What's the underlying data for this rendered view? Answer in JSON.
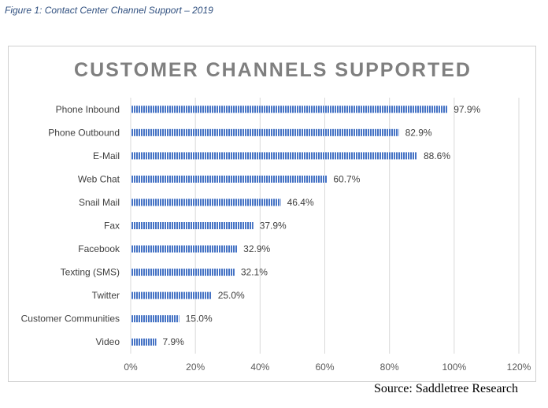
{
  "caption": "Figure 1: Contact Center Channel Support – 2019",
  "source": "Source: Saddletree Research",
  "chart_data": {
    "type": "bar",
    "orientation": "horizontal",
    "title": "CUSTOMER CHANNELS SUPPORTED",
    "categories": [
      "Phone Inbound",
      "Phone Outbound",
      "E-Mail",
      "Web Chat",
      "Snail Mail",
      "Fax",
      "Facebook",
      "Texting (SMS)",
      "Twitter",
      "Customer Communities",
      "Video"
    ],
    "values": [
      97.9,
      82.9,
      88.6,
      60.7,
      46.4,
      37.9,
      32.9,
      32.1,
      25.0,
      15.0,
      7.9
    ],
    "value_labels": [
      "97.9%",
      "82.9%",
      "88.6%",
      "60.7%",
      "46.4%",
      "37.9%",
      "32.9%",
      "32.1%",
      "25.0%",
      "15.0%",
      "7.9%"
    ],
    "xlim": [
      0,
      120
    ],
    "xticks": [
      0,
      20,
      40,
      60,
      80,
      100,
      120
    ],
    "xtick_labels": [
      "0%",
      "20%",
      "40%",
      "60%",
      "80%",
      "100%",
      "120%"
    ],
    "grid": true,
    "legend": "none",
    "bar_color": "#4472c4",
    "bar_pattern": "vertical-stripes"
  }
}
